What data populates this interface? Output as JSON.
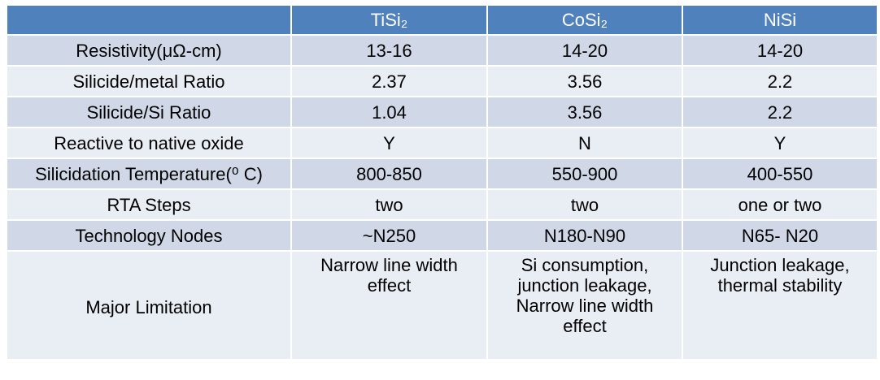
{
  "table": {
    "header": [
      "",
      "TiSi₂",
      "CoSi₂",
      "NiSi"
    ],
    "rows": [
      [
        "Resistivity(μΩ-cm)",
        "13-16",
        "14-20",
        "14-20"
      ],
      [
        "Silicide/metal Ratio",
        "2.37",
        "3.56",
        "2.2"
      ],
      [
        "Silicide/Si Ratio",
        "1.04",
        "3.56",
        "2.2"
      ],
      [
        "Reactive to native oxide",
        "Y",
        "N",
        "Y"
      ],
      [
        "Silicidation Temperature(⁰ C)",
        "800-850",
        "550-900",
        "400-550"
      ],
      [
        "RTA Steps",
        "two",
        "two",
        "one or two"
      ],
      [
        "Technology Nodes",
        "~N250",
        "N180-N90",
        "N65- N20"
      ],
      [
        [
          "Major Limitation"
        ],
        [
          "Narrow line width",
          "effect"
        ],
        [
          "Si consumption,",
          "junction leakage,",
          "Narrow line width",
          "effect"
        ],
        [
          "Junction leakage,",
          "thermal stability"
        ]
      ]
    ]
  }
}
